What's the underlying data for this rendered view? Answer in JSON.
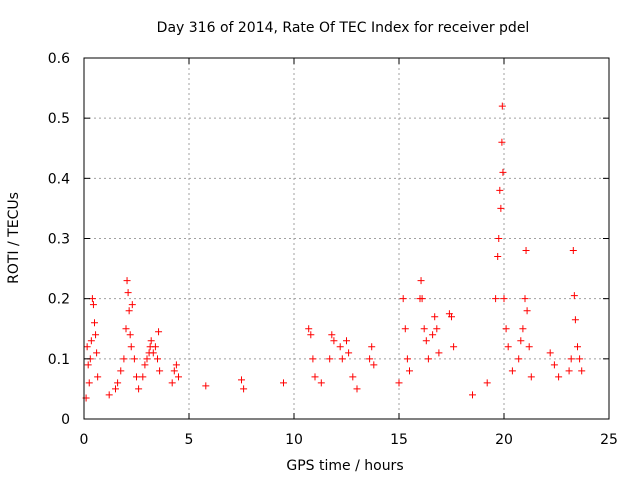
{
  "chart_data": {
    "type": "scatter",
    "title": "Day 316 of 2014, Rate Of TEC Index for receiver pdel",
    "xlabel": "GPS time / hours",
    "ylabel": "ROTI / TECUs",
    "xlim": [
      0,
      25
    ],
    "ylim": [
      0,
      0.6
    ],
    "xticks": [
      0,
      5,
      10,
      15,
      20,
      25
    ],
    "yticks": [
      0,
      0.1,
      0.2,
      0.3,
      0.4,
      0.5,
      0.6
    ],
    "xtick_labels": [
      "0",
      "5",
      "10",
      "15",
      "20",
      "25"
    ],
    "ytick_labels": [
      "0",
      "0.1",
      "0.2",
      "0.3",
      "0.4",
      "0.5",
      "0.6"
    ],
    "grid": true,
    "marker": "+",
    "color": "#ff0000",
    "series": [
      {
        "name": "ROTI",
        "points": [
          [
            0.1,
            0.035
          ],
          [
            0.15,
            0.12
          ],
          [
            0.2,
            0.09
          ],
          [
            0.25,
            0.06
          ],
          [
            0.3,
            0.1
          ],
          [
            0.35,
            0.13
          ],
          [
            0.4,
            0.2
          ],
          [
            0.45,
            0.19
          ],
          [
            0.5,
            0.16
          ],
          [
            0.55,
            0.14
          ],
          [
            0.6,
            0.11
          ],
          [
            0.65,
            0.07
          ],
          [
            1.2,
            0.04
          ],
          [
            1.5,
            0.05
          ],
          [
            1.6,
            0.06
          ],
          [
            1.75,
            0.08
          ],
          [
            1.9,
            0.1
          ],
          [
            2.0,
            0.15
          ],
          [
            2.05,
            0.23
          ],
          [
            2.1,
            0.21
          ],
          [
            2.15,
            0.18
          ],
          [
            2.2,
            0.14
          ],
          [
            2.25,
            0.12
          ],
          [
            2.3,
            0.19
          ],
          [
            2.4,
            0.1
          ],
          [
            2.5,
            0.07
          ],
          [
            2.6,
            0.05
          ],
          [
            2.8,
            0.07
          ],
          [
            2.9,
            0.09
          ],
          [
            3.0,
            0.1
          ],
          [
            3.1,
            0.11
          ],
          [
            3.15,
            0.12
          ],
          [
            3.2,
            0.13
          ],
          [
            3.3,
            0.11
          ],
          [
            3.4,
            0.12
          ],
          [
            3.5,
            0.1
          ],
          [
            3.55,
            0.145
          ],
          [
            3.6,
            0.08
          ],
          [
            4.2,
            0.06
          ],
          [
            4.3,
            0.08
          ],
          [
            4.4,
            0.09
          ],
          [
            4.5,
            0.07
          ],
          [
            5.8,
            0.055
          ],
          [
            7.5,
            0.065
          ],
          [
            7.6,
            0.05
          ],
          [
            9.5,
            0.06
          ],
          [
            10.7,
            0.15
          ],
          [
            10.8,
            0.14
          ],
          [
            10.9,
            0.1
          ],
          [
            11.0,
            0.07
          ],
          [
            11.3,
            0.06
          ],
          [
            11.7,
            0.1
          ],
          [
            11.8,
            0.14
          ],
          [
            11.9,
            0.13
          ],
          [
            12.2,
            0.12
          ],
          [
            12.3,
            0.1
          ],
          [
            12.5,
            0.13
          ],
          [
            12.6,
            0.11
          ],
          [
            12.8,
            0.07
          ],
          [
            13.0,
            0.05
          ],
          [
            13.6,
            0.1
          ],
          [
            13.7,
            0.12
          ],
          [
            13.8,
            0.09
          ],
          [
            15.0,
            0.06
          ],
          [
            15.2,
            0.2
          ],
          [
            15.3,
            0.15
          ],
          [
            15.4,
            0.1
          ],
          [
            15.5,
            0.08
          ],
          [
            16.0,
            0.2
          ],
          [
            16.05,
            0.23
          ],
          [
            16.1,
            0.2
          ],
          [
            16.2,
            0.15
          ],
          [
            16.3,
            0.13
          ],
          [
            16.4,
            0.1
          ],
          [
            16.6,
            0.14
          ],
          [
            16.7,
            0.17
          ],
          [
            16.8,
            0.15
          ],
          [
            16.9,
            0.11
          ],
          [
            17.4,
            0.175
          ],
          [
            17.5,
            0.17
          ],
          [
            17.6,
            0.12
          ],
          [
            18.5,
            0.04
          ],
          [
            19.2,
            0.06
          ],
          [
            19.6,
            0.2
          ],
          [
            19.7,
            0.27
          ],
          [
            19.75,
            0.3
          ],
          [
            19.8,
            0.38
          ],
          [
            19.85,
            0.35
          ],
          [
            19.9,
            0.46
          ],
          [
            19.92,
            0.52
          ],
          [
            19.95,
            0.41
          ],
          [
            20.0,
            0.2
          ],
          [
            20.1,
            0.15
          ],
          [
            20.2,
            0.12
          ],
          [
            20.4,
            0.08
          ],
          [
            20.7,
            0.1
          ],
          [
            20.8,
            0.13
          ],
          [
            20.9,
            0.15
          ],
          [
            21.0,
            0.2
          ],
          [
            21.05,
            0.28
          ],
          [
            21.1,
            0.18
          ],
          [
            21.2,
            0.12
          ],
          [
            21.3,
            0.07
          ],
          [
            22.2,
            0.11
          ],
          [
            22.4,
            0.09
          ],
          [
            22.6,
            0.07
          ],
          [
            23.1,
            0.08
          ],
          [
            23.2,
            0.1
          ],
          [
            23.3,
            0.28
          ],
          [
            23.35,
            0.205
          ],
          [
            23.4,
            0.165
          ],
          [
            23.5,
            0.12
          ],
          [
            23.6,
            0.1
          ],
          [
            23.7,
            0.08
          ]
        ]
      }
    ]
  }
}
